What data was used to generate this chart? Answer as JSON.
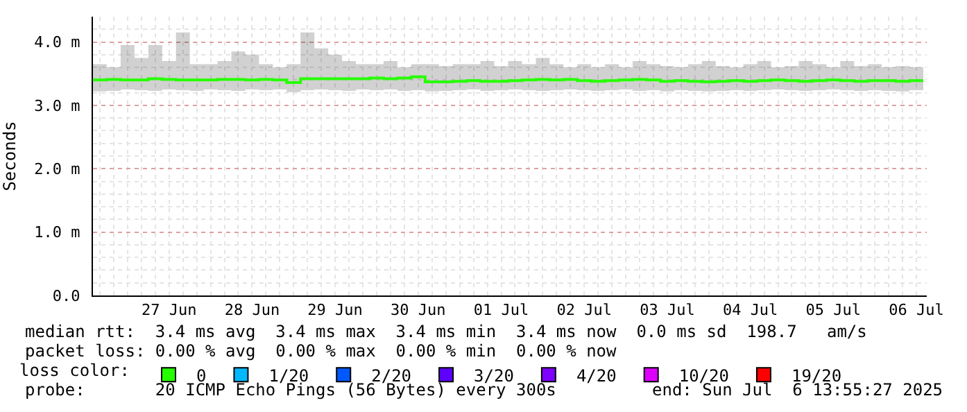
{
  "chart_data": {
    "type": "line",
    "ylabel": "Seconds",
    "legend_title": "loss color:",
    "x": [
      "2025-06-26T14:00",
      "2025-06-26T18:00",
      "2025-06-26T22:00",
      "2025-06-27T02:00",
      "2025-06-27T06:00",
      "2025-06-27T10:00",
      "2025-06-27T14:00",
      "2025-06-27T18:00",
      "2025-06-27T22:00",
      "2025-06-28T02:00",
      "2025-06-28T06:00",
      "2025-06-28T10:00",
      "2025-06-28T14:00",
      "2025-06-28T18:00",
      "2025-06-28T22:00",
      "2025-06-29T02:00",
      "2025-06-29T06:00",
      "2025-06-29T10:00",
      "2025-06-29T14:00",
      "2025-06-29T18:00",
      "2025-06-29T22:00",
      "2025-06-30T02:00",
      "2025-06-30T06:00",
      "2025-06-30T10:00",
      "2025-06-30T14:00",
      "2025-06-30T18:00",
      "2025-06-30T22:00",
      "2025-07-01T02:00",
      "2025-07-01T06:00",
      "2025-07-01T10:00",
      "2025-07-01T14:00",
      "2025-07-01T18:00",
      "2025-07-01T22:00",
      "2025-07-02T02:00",
      "2025-07-02T06:00",
      "2025-07-02T10:00",
      "2025-07-02T14:00",
      "2025-07-02T18:00",
      "2025-07-02T22:00",
      "2025-07-03T02:00",
      "2025-07-03T06:00",
      "2025-07-03T10:00",
      "2025-07-03T14:00",
      "2025-07-03T18:00",
      "2025-07-03T22:00",
      "2025-07-04T02:00",
      "2025-07-04T06:00",
      "2025-07-04T10:00",
      "2025-07-04T14:00",
      "2025-07-04T18:00",
      "2025-07-04T22:00",
      "2025-07-05T02:00",
      "2025-07-05T06:00",
      "2025-07-05T10:00",
      "2025-07-05T14:00",
      "2025-07-05T18:00",
      "2025-07-05T22:00",
      "2025-07-06T02:00",
      "2025-07-06T06:00",
      "2025-07-06T10:00",
      "2025-07-06T14:00"
    ],
    "series": [
      {
        "name": "0",
        "color": "#26ff00",
        "values": [
          3.4,
          3.41,
          3.4,
          3.4,
          3.42,
          3.41,
          3.4,
          3.4,
          3.4,
          3.41,
          3.41,
          3.4,
          3.41,
          3.4,
          3.36,
          3.42,
          3.42,
          3.42,
          3.42,
          3.42,
          3.43,
          3.42,
          3.43,
          3.45,
          3.37,
          3.37,
          3.38,
          3.39,
          3.38,
          3.38,
          3.39,
          3.4,
          3.41,
          3.4,
          3.41,
          3.39,
          3.38,
          3.39,
          3.4,
          3.41,
          3.4,
          3.38,
          3.39,
          3.38,
          3.37,
          3.38,
          3.39,
          3.38,
          3.39,
          3.4,
          3.39,
          3.38,
          3.39,
          3.4,
          3.39,
          3.38,
          3.39,
          3.39,
          3.38,
          3.39,
          3.39
        ],
        "lower": [
          3.22,
          3.23,
          3.25,
          3.24,
          3.23,
          3.25,
          3.24,
          3.23,
          3.25,
          3.24,
          3.23,
          3.25,
          3.24,
          3.25,
          3.21,
          3.24,
          3.25,
          3.24,
          3.23,
          3.25,
          3.24,
          3.25,
          3.23,
          3.24,
          3.22,
          3.23,
          3.24,
          3.25,
          3.23,
          3.24,
          3.25,
          3.24,
          3.23,
          3.24,
          3.25,
          3.24,
          3.23,
          3.24,
          3.25,
          3.23,
          3.24,
          3.22,
          3.24,
          3.23,
          3.22,
          3.23,
          3.24,
          3.23,
          3.24,
          3.25,
          3.24,
          3.23,
          3.24,
          3.25,
          3.24,
          3.23,
          3.24,
          3.23,
          3.22,
          3.24,
          3.24
        ],
        "upper": [
          3.65,
          3.6,
          3.95,
          3.75,
          3.95,
          3.7,
          4.15,
          3.65,
          3.65,
          3.7,
          3.85,
          3.8,
          3.65,
          3.6,
          3.65,
          4.15,
          3.9,
          3.8,
          3.7,
          3.65,
          3.65,
          3.7,
          3.6,
          3.65,
          3.65,
          3.62,
          3.65,
          3.65,
          3.7,
          3.62,
          3.7,
          3.65,
          3.75,
          3.65,
          3.6,
          3.65,
          3.6,
          3.65,
          3.6,
          3.7,
          3.65,
          3.62,
          3.6,
          3.65,
          3.7,
          3.62,
          3.6,
          3.65,
          3.7,
          3.6,
          3.62,
          3.7,
          3.65,
          3.6,
          3.7,
          3.62,
          3.65,
          3.6,
          3.62,
          3.6,
          3.62
        ]
      },
      {
        "name": "1/20",
        "color": "#00b8ff",
        "values": [
          null,
          null,
          null,
          null,
          null,
          null,
          null,
          null,
          null,
          null,
          null,
          null,
          null,
          null,
          null,
          null,
          null,
          null,
          null,
          null,
          null,
          null,
          null,
          null,
          null,
          null,
          null,
          null,
          null,
          null,
          null,
          null,
          null,
          null,
          null,
          null,
          null,
          null,
          null,
          null,
          null,
          null,
          null,
          null,
          null,
          null,
          null,
          null,
          null,
          null,
          null,
          null,
          null,
          null,
          null,
          null,
          null,
          null,
          null,
          null,
          null
        ]
      },
      {
        "name": "2/20",
        "color": "#0059ff",
        "values": [
          null,
          null,
          null,
          null,
          null,
          null,
          null,
          null,
          null,
          null,
          null,
          null,
          null,
          null,
          null,
          null,
          null,
          null,
          null,
          null,
          null,
          null,
          null,
          null,
          null,
          null,
          null,
          null,
          null,
          null,
          null,
          null,
          null,
          null,
          null,
          null,
          null,
          null,
          null,
          null,
          null,
          null,
          null,
          null,
          null,
          null,
          null,
          null,
          null,
          null,
          null,
          null,
          null,
          null,
          null,
          null,
          null,
          null,
          null,
          null,
          null
        ]
      },
      {
        "name": "3/20",
        "color": "#5e00ff",
        "values": [
          null,
          null,
          null,
          null,
          null,
          null,
          null,
          null,
          null,
          null,
          null,
          null,
          null,
          null,
          null,
          null,
          null,
          null,
          null,
          null,
          null,
          null,
          null,
          null,
          null,
          null,
          null,
          null,
          null,
          null,
          null,
          null,
          null,
          null,
          null,
          null,
          null,
          null,
          null,
          null,
          null,
          null,
          null,
          null,
          null,
          null,
          null,
          null,
          null,
          null,
          null,
          null,
          null,
          null,
          null,
          null,
          null,
          null,
          null,
          null,
          null
        ]
      },
      {
        "name": "4/20",
        "color": "#7e00ff",
        "values": [
          null,
          null,
          null,
          null,
          null,
          null,
          null,
          null,
          null,
          null,
          null,
          null,
          null,
          null,
          null,
          null,
          null,
          null,
          null,
          null,
          null,
          null,
          null,
          null,
          null,
          null,
          null,
          null,
          null,
          null,
          null,
          null,
          null,
          null,
          null,
          null,
          null,
          null,
          null,
          null,
          null,
          null,
          null,
          null,
          null,
          null,
          null,
          null,
          null,
          null,
          null,
          null,
          null,
          null,
          null,
          null,
          null,
          null,
          null,
          null,
          null
        ]
      },
      {
        "name": "10/20",
        "color": "#dd00ff",
        "values": [
          null,
          null,
          null,
          null,
          null,
          null,
          null,
          null,
          null,
          null,
          null,
          null,
          null,
          null,
          null,
          null,
          null,
          null,
          null,
          null,
          null,
          null,
          null,
          null,
          null,
          null,
          null,
          null,
          null,
          null,
          null,
          null,
          null,
          null,
          null,
          null,
          null,
          null,
          null,
          null,
          null,
          null,
          null,
          null,
          null,
          null,
          null,
          null,
          null,
          null,
          null,
          null,
          null,
          null,
          null,
          null,
          null,
          null,
          null,
          null,
          null
        ]
      },
      {
        "name": "19/20",
        "color": "#ff0000",
        "values": [
          null,
          null,
          null,
          null,
          null,
          null,
          null,
          null,
          null,
          null,
          null,
          null,
          null,
          null,
          null,
          null,
          null,
          null,
          null,
          null,
          null,
          null,
          null,
          null,
          null,
          null,
          null,
          null,
          null,
          null,
          null,
          null,
          null,
          null,
          null,
          null,
          null,
          null,
          null,
          null,
          null,
          null,
          null,
          null,
          null,
          null,
          null,
          null,
          null,
          null,
          null,
          null,
          null,
          null,
          null,
          null,
          null,
          null,
          null,
          null,
          null
        ]
      }
    ],
    "xlim": [
      "2025-06-26T14:00",
      "2025-07-06T15:00"
    ],
    "xticks": [
      {
        "value": "2025-06-27T12:00",
        "label": "27 Jun"
      },
      {
        "value": "2025-06-28T12:00",
        "label": "28 Jun"
      },
      {
        "value": "2025-06-29T12:00",
        "label": "29 Jun"
      },
      {
        "value": "2025-06-30T12:00",
        "label": "30 Jun"
      },
      {
        "value": "2025-07-01T12:00",
        "label": "01 Jul"
      },
      {
        "value": "2025-07-02T12:00",
        "label": "02 Jul"
      },
      {
        "value": "2025-07-03T12:00",
        "label": "03 Jul"
      },
      {
        "value": "2025-07-04T12:00",
        "label": "04 Jul"
      },
      {
        "value": "2025-07-05T12:00",
        "label": "05 Jul"
      },
      {
        "value": "2025-07-06T12:00",
        "label": "06 Jul"
      }
    ],
    "ylim": [
      0,
      4.4
    ],
    "yticks": [
      {
        "value": 0,
        "label": "0.0"
      },
      {
        "value": 1,
        "label": "1.0 m"
      },
      {
        "value": 2,
        "label": "2.0 m"
      },
      {
        "value": 3,
        "label": "3.0 m"
      },
      {
        "value": 4,
        "label": "4.0 m"
      }
    ],
    "grid": true,
    "legend": "bottom",
    "marker": "none",
    "line_style": "solid",
    "annotations": [
      "median rtt:  3.4 ms avg  3.4 ms max  3.4 ms min  3.4 ms now  0.0 ms sd  198.7   am/s",
      "packet loss: 0.00 % avg  0.00 % max  0.00 % min  0.00 % now",
      "probe:       20 ICMP Echo Pings (56 Bytes) every 300s",
      "end: Sun Jul  6 13:55:27 2025"
    ]
  }
}
